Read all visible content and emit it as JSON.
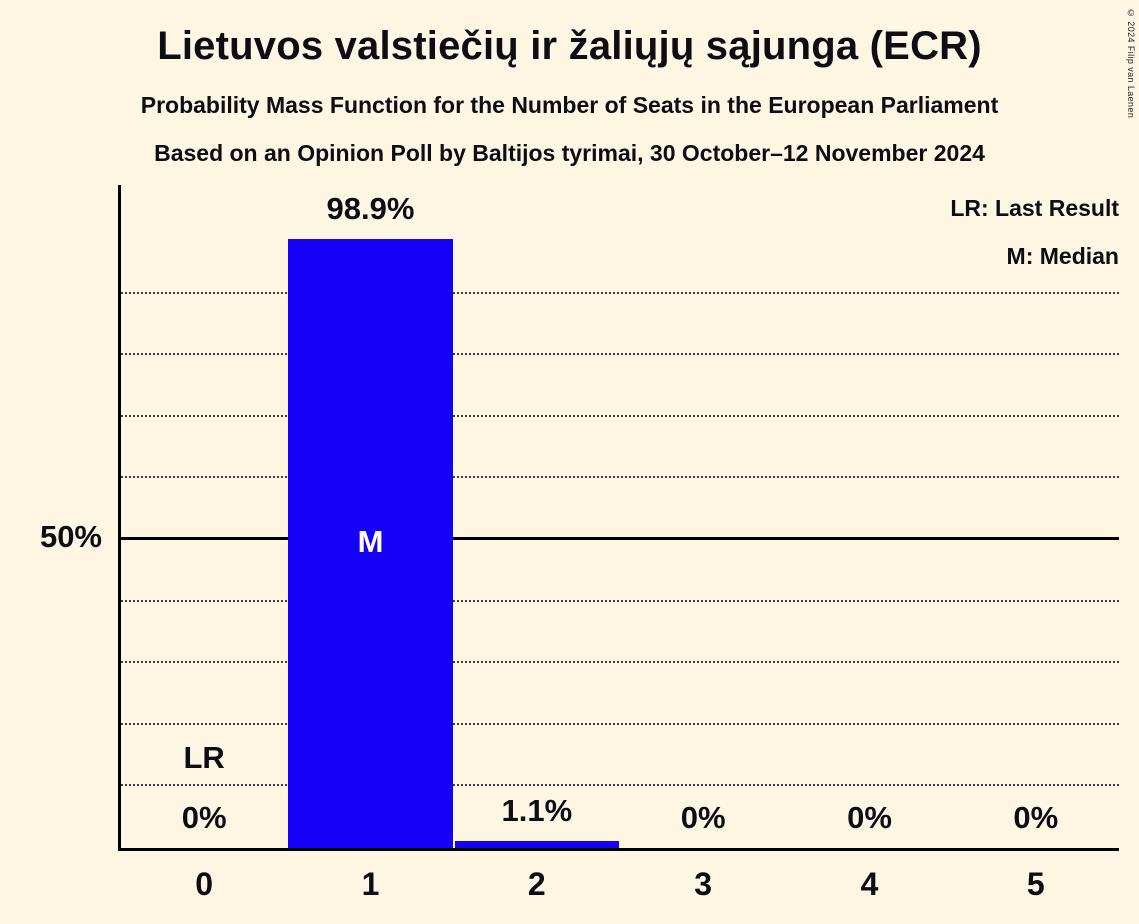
{
  "chart_data": {
    "type": "bar",
    "title": "Lietuvos valstiečių ir žaliųjų sąjunga (ECR)",
    "subtitle": "Probability Mass Function for the Number of Seats in the European Parliament",
    "poll_line": "Based on an Opinion Poll by Baltijos tyrimai, 30 October–12 November 2024",
    "copyright": "© 2024 Filip van Laenen",
    "legend": {
      "lr": "LR: Last Result",
      "m": "M: Median"
    },
    "legend_position": "top-right",
    "categories": [
      "0",
      "1",
      "2",
      "3",
      "4",
      "5"
    ],
    "values": [
      0,
      98.9,
      1.1,
      0,
      0,
      0
    ],
    "value_labels": [
      "0%",
      "98.9%",
      "1.1%",
      "0%",
      "0%",
      "0%"
    ],
    "xlabel": "",
    "ylabel": "",
    "y_axis_tick": "50%",
    "ylim": [
      0,
      100
    ],
    "grid": "dotted horizontal line every 10%, solid line at 50%",
    "median_seats": "1",
    "median_marker": "M",
    "last_result_seats": "0",
    "last_result_marker": "LR",
    "bar_color": "#1500f8",
    "background_color": "#fdf6e3",
    "text_color": "#0d0d16"
  }
}
